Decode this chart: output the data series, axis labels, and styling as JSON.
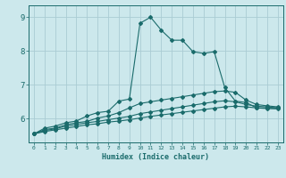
{
  "xlabel": "Humidex (Indice chaleur)",
  "ylabel": "",
  "bg_color": "#cce8ec",
  "grid_color": "#aaccd4",
  "line_color": "#1a6b6b",
  "xlim": [
    -0.5,
    23.5
  ],
  "ylim": [
    5.3,
    9.35
  ],
  "xticks": [
    0,
    1,
    2,
    3,
    4,
    5,
    6,
    7,
    8,
    9,
    10,
    11,
    12,
    13,
    14,
    15,
    16,
    17,
    18,
    19,
    20,
    21,
    22,
    23
  ],
  "yticks": [
    6,
    7,
    8,
    9
  ],
  "lines": [
    {
      "x": [
        0,
        1,
        2,
        3,
        4,
        5,
        6,
        7,
        8,
        9,
        10,
        11,
        12,
        13,
        14,
        15,
        16,
        17,
        18,
        19,
        20,
        21,
        22,
        23
      ],
      "y": [
        5.55,
        5.72,
        5.78,
        5.88,
        5.93,
        6.08,
        6.18,
        6.22,
        6.52,
        6.58,
        8.82,
        9.0,
        8.62,
        8.32,
        8.32,
        7.98,
        7.93,
        7.98,
        6.92,
        6.52,
        6.48,
        6.32,
        6.32,
        6.32
      ]
    },
    {
      "x": [
        0,
        1,
        2,
        3,
        4,
        5,
        6,
        7,
        8,
        9,
        10,
        11,
        12,
        13,
        14,
        15,
        16,
        17,
        18,
        19,
        20,
        21,
        22,
        23
      ],
      "y": [
        5.55,
        5.68,
        5.72,
        5.82,
        5.88,
        5.92,
        6.02,
        6.08,
        6.18,
        6.32,
        6.45,
        6.5,
        6.55,
        6.6,
        6.65,
        6.7,
        6.75,
        6.8,
        6.82,
        6.78,
        6.55,
        6.42,
        6.38,
        6.35
      ]
    },
    {
      "x": [
        0,
        1,
        2,
        3,
        4,
        5,
        6,
        7,
        8,
        9,
        10,
        11,
        12,
        13,
        14,
        15,
        16,
        17,
        18,
        19,
        20,
        21,
        22,
        23
      ],
      "y": [
        5.55,
        5.65,
        5.7,
        5.78,
        5.83,
        5.88,
        5.92,
        5.97,
        6.02,
        6.07,
        6.15,
        6.2,
        6.25,
        6.3,
        6.35,
        6.4,
        6.45,
        6.5,
        6.53,
        6.5,
        6.42,
        6.37,
        6.35,
        6.32
      ]
    },
    {
      "x": [
        0,
        1,
        2,
        3,
        4,
        5,
        6,
        7,
        8,
        9,
        10,
        11,
        12,
        13,
        14,
        15,
        16,
        17,
        18,
        19,
        20,
        21,
        22,
        23
      ],
      "y": [
        5.55,
        5.62,
        5.67,
        5.72,
        5.77,
        5.82,
        5.85,
        5.9,
        5.93,
        5.97,
        6.02,
        6.07,
        6.11,
        6.15,
        6.19,
        6.23,
        6.27,
        6.31,
        6.35,
        6.37,
        6.35,
        6.32,
        6.3,
        6.29
      ]
    }
  ]
}
